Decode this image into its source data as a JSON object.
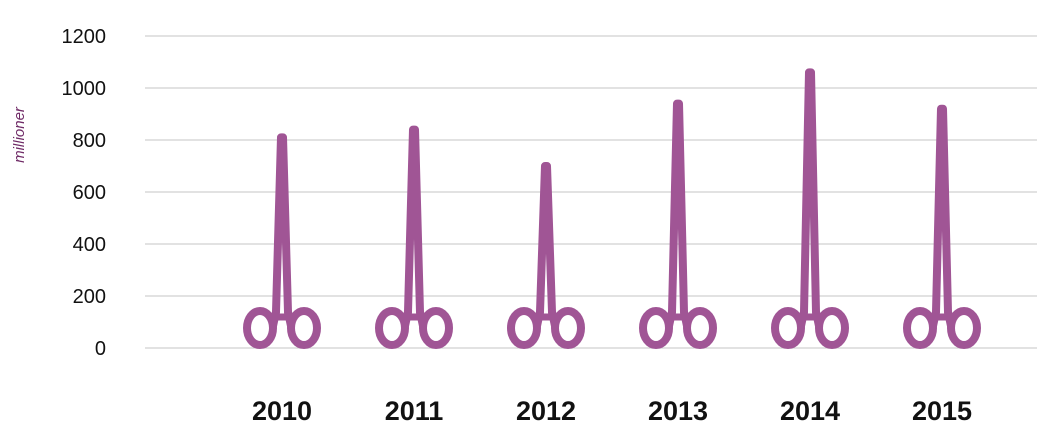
{
  "chart_data": {
    "type": "bar",
    "ylabel": "millioner",
    "categories": [
      "2010",
      "2011",
      "2012",
      "2013",
      "2014",
      "2015"
    ],
    "values": [
      810,
      840,
      700,
      940,
      1060,
      920
    ],
    "ylim": [
      0,
      1200
    ],
    "yticks": [
      "0",
      "200",
      "400",
      "600",
      "800",
      "1000",
      "1200"
    ],
    "grid": true,
    "mark": "scissors-pictogram",
    "colors": {
      "mark": "#a05595",
      "gridline": "#d9d9d9",
      "ylabel": "#6f2a66"
    }
  }
}
